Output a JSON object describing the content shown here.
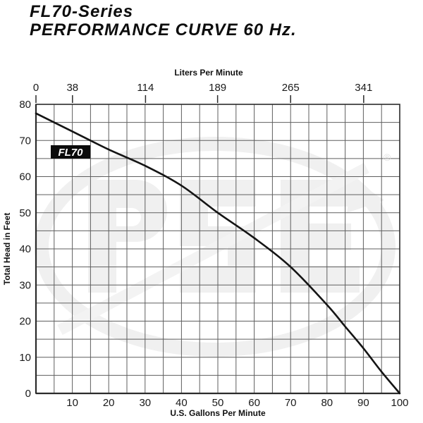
{
  "header": {
    "title_line1": "FL70-Series",
    "title_line2": "PERFORMANCE CURVE 60 Hz."
  },
  "chart_data": {
    "type": "line",
    "title": "FL70-Series Performance Curve 60 Hz",
    "series": [
      {
        "name": "FL70",
        "x_gpm": [
          0,
          10,
          20,
          30,
          40,
          50,
          60,
          70,
          80,
          85,
          90,
          95,
          100
        ],
        "y_head_ft": [
          77.5,
          72.5,
          67.5,
          63,
          57.5,
          50,
          43,
          35,
          24.5,
          18.5,
          12.5,
          6,
          0
        ]
      }
    ],
    "axes": {
      "bottom": {
        "label": "U.S. Gallons Per Minute",
        "ticks": [
          10,
          20,
          30,
          40,
          50,
          60,
          70,
          80,
          90,
          100
        ],
        "range": [
          0,
          100
        ],
        "minor_step": 5
      },
      "top": {
        "label": "Liters Per Minute",
        "ticks": [
          0,
          38,
          114,
          189,
          265,
          341
        ],
        "lpm_per_gal": 3.78541
      },
      "left": {
        "label": "Total Head in Feet",
        "ticks": [
          80,
          70,
          60,
          50,
          40,
          30,
          20,
          10,
          0
        ],
        "range": [
          0,
          80
        ],
        "minor_step": 5
      }
    },
    "grid": true,
    "legend": {
      "curve_label": "FL70"
    },
    "watermark": {
      "reg_mark": "®"
    },
    "colors": {
      "curve": "#141414",
      "grid": "#5f5f5f",
      "axis": "#2b2b2b",
      "text": "#1a1a1a",
      "label_box_bg": "#0b0b0b",
      "label_box_text": "#ffffff",
      "watermark": "#f0f0f0",
      "reg_mark": "#e0e0e0"
    }
  }
}
